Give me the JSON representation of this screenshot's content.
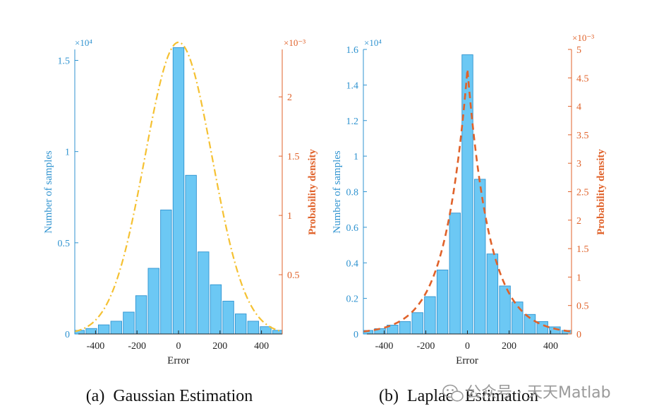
{
  "chart_data": [
    {
      "type": "bar",
      "id": "gaussian",
      "caption": "(a)  Gaussian Estimation",
      "xlabel": "Error",
      "ylabel_left": "Number of samples",
      "ylabel_right": "Probability density",
      "left_exponent": "×10⁴",
      "right_exponent": "×10⁻³",
      "xlim": [
        -500,
        500
      ],
      "ylim_left": [
        0,
        15600
      ],
      "ylim_right": [
        0,
        0.0024
      ],
      "xticks": [
        -400,
        -200,
        0,
        200,
        400
      ],
      "xtick_labels": [
        "-400",
        "-200",
        "0",
        "200",
        "400"
      ],
      "yticks_left": [
        0,
        5000,
        10000,
        15000
      ],
      "ytick_labels_left": [
        "0",
        "0.5",
        "1",
        "1.5"
      ],
      "yticks_right": [
        0.0005,
        0.001,
        0.0015,
        0.002
      ],
      "ytick_labels_right": [
        "0.5",
        "1",
        "1.5",
        "2"
      ],
      "bar_color": "#6cc8f4",
      "bar_edge_color": "#2f93d0",
      "categories": [
        -480,
        -420,
        -360,
        -300,
        -240,
        -180,
        -120,
        -60,
        0,
        60,
        120,
        180,
        240,
        300,
        360,
        420,
        480
      ],
      "values": [
        200,
        300,
        500,
        700,
        1200,
        2100,
        3600,
        6800,
        15700,
        8700,
        4500,
        2700,
        1800,
        1100,
        700,
        400,
        200
      ],
      "curve": {
        "name": "Gaussian fit",
        "color": "#f5c132",
        "dash": "dashdot",
        "mu": 0,
        "sigma": 162,
        "peak": 0.00246
      }
    },
    {
      "type": "bar",
      "id": "laplace",
      "caption": "(b)  Laplace Estimation",
      "xlabel": "Error",
      "ylabel_left": "Number of samples",
      "ylabel_right": "Probability density",
      "left_exponent": "×10⁴",
      "right_exponent": "×10⁻³",
      "xlim": [
        -500,
        500
      ],
      "ylim_left": [
        0,
        16000
      ],
      "ylim_right": [
        0,
        0.005
      ],
      "xticks": [
        -400,
        -200,
        0,
        200,
        400
      ],
      "xtick_labels": [
        "-400",
        "-200",
        "0",
        "200",
        "400"
      ],
      "yticks_left": [
        0,
        2000,
        4000,
        6000,
        8000,
        10000,
        12000,
        14000,
        16000
      ],
      "ytick_labels_left": [
        "0",
        "0.2",
        "0.4",
        "0.6",
        "0.8",
        "1",
        "1.2",
        "1.4",
        "1.6"
      ],
      "yticks_right": [
        0,
        0.0005,
        0.001,
        0.0015,
        0.002,
        0.0025,
        0.003,
        0.0035,
        0.004,
        0.0045,
        0.005
      ],
      "ytick_labels_right": [
        "0",
        "0.5",
        "1",
        "1.5",
        "2",
        "2.5",
        "3",
        "3.5",
        "4",
        "4.5",
        "5"
      ],
      "bar_color": "#6cc8f4",
      "bar_edge_color": "#2f93d0",
      "categories": [
        -480,
        -420,
        -360,
        -300,
        -240,
        -180,
        -120,
        -60,
        0,
        60,
        120,
        180,
        240,
        300,
        360,
        420,
        480
      ],
      "values": [
        200,
        300,
        500,
        700,
        1200,
        2100,
        3600,
        6800,
        15700,
        8700,
        4500,
        2700,
        1800,
        1100,
        700,
        400,
        200
      ],
      "curve": {
        "name": "Laplace fit",
        "color": "#e0622a",
        "dash": "dashed",
        "mu": 0,
        "b": 107,
        "peak": 0.00465
      }
    }
  ],
  "watermark": "公众号 · 天天Matlab"
}
